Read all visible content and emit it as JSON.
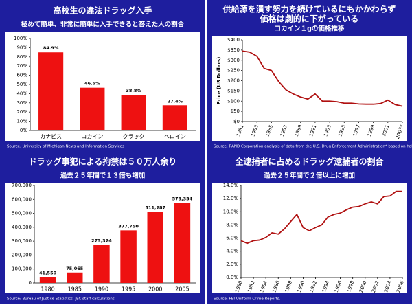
{
  "chart_data": [
    {
      "type": "bar",
      "title": [
        "高校生の違法ドラッグ入手"
      ],
      "subtitle": "極めて簡単、非常に簡単に入手できると答えた人の割合",
      "categories": [
        "カナビス",
        "コカイン",
        "クラック",
        "ヘロイン"
      ],
      "values": [
        84.9,
        46.5,
        38.8,
        27.4
      ],
      "value_labels": [
        "84.9%",
        "46.5%",
        "38.8%",
        "27.4%"
      ],
      "color": "#ee1111",
      "ylim": [
        0,
        100
      ],
      "yticks": [
        {
          "value": 0,
          "label": "0%"
        },
        {
          "value": 10,
          "label": "10%"
        },
        {
          "value": 20,
          "label": "20%"
        },
        {
          "value": 30,
          "label": "30%"
        },
        {
          "value": 40,
          "label": "40%"
        },
        {
          "value": 50,
          "label": "50%"
        },
        {
          "value": 60,
          "label": "60%"
        },
        {
          "value": 70,
          "label": "70%"
        },
        {
          "value": 80,
          "label": "80%"
        },
        {
          "value": 90,
          "label": "90%"
        },
        {
          "value": 100,
          "label": "100%"
        }
      ],
      "source": "Source: University of Michigan News and Information Services"
    },
    {
      "type": "line",
      "title": [
        "供給源を潰す努力を続けているにもかかわらず",
        "価格は劇的に下がっている"
      ],
      "subtitle": "コカイン１gの価格推移",
      "ylabel": "Price (US Dollars)",
      "x": [
        1981,
        1982,
        1983,
        1984,
        1985,
        1986,
        1987,
        1988,
        1989,
        1990,
        1991,
        1992,
        1993,
        1994,
        1995,
        1996,
        1997,
        1998,
        1999,
        2000,
        2001,
        2002,
        2003
      ],
      "values": [
        345,
        340,
        320,
        260,
        250,
        195,
        155,
        135,
        120,
        110,
        135,
        100,
        100,
        97,
        90,
        90,
        86,
        85,
        85,
        88,
        105,
        83,
        75
      ],
      "color": "#b01010",
      "xlim": [
        1981,
        2003
      ],
      "xticks": [
        1981,
        1983,
        1985,
        1987,
        1989,
        1991,
        1993,
        1995,
        1997,
        1999,
        2001,
        {
          "value": 2003,
          "label": "2003*"
        }
      ],
      "ylim": [
        0,
        400
      ],
      "yticks": [
        {
          "value": 0,
          "label": "$0"
        },
        {
          "value": 50,
          "label": "$50"
        },
        {
          "value": 100,
          "label": "$100"
        },
        {
          "value": 150,
          "label": "$150"
        },
        {
          "value": 200,
          "label": "$200"
        },
        {
          "value": 250,
          "label": "$250"
        },
        {
          "value": 300,
          "label": "$300"
        },
        {
          "value": 350,
          "label": "$350"
        },
        {
          "value": 400,
          "label": "$400"
        }
      ],
      "source": "Source: RAND Corporation analysis of data from the U.S. Drug Enforcement Administration* based on half a year of data"
    },
    {
      "type": "bar",
      "title": [
        "ドラッグ事犯による拘禁は５０万人余り"
      ],
      "subtitle": "過去２５年間で１３倍も増加",
      "categories": [
        "1980",
        "1985",
        "1990",
        "1995",
        "2000",
        "2005"
      ],
      "values": [
        41550,
        75065,
        273324,
        377750,
        511287,
        573354
      ],
      "value_labels": [
        "41,550",
        "75,065",
        "273,324",
        "377,750",
        "511,287",
        "573,354"
      ],
      "color": "#ee1111",
      "ylim": [
        0,
        700000
      ],
      "yticks": [
        0,
        {
          "value": 100000,
          "label": "100,000"
        },
        {
          "value": 200000,
          "label": "200,000"
        },
        {
          "value": 300000,
          "label": "300,000"
        },
        {
          "value": 400000,
          "label": "400,000"
        },
        {
          "value": 500000,
          "label": "500,000"
        },
        {
          "value": 600000,
          "label": "600,000"
        },
        {
          "value": 700000,
          "label": "700,000"
        }
      ],
      "source": "Source: Bureau of Justice Statistics, JEC staff calculations."
    },
    {
      "type": "line",
      "title": [
        "全逮捕者に占めるドラッグ逮捕者の割合"
      ],
      "subtitle": "過去２５年間で２倍以上に増加",
      "x": [
        1980,
        1981,
        1982,
        1983,
        1984,
        1985,
        1986,
        1987,
        1988,
        1989,
        1990,
        1991,
        1992,
        1993,
        1994,
        1995,
        1996,
        1997,
        1998,
        1999,
        2000,
        2001,
        2002,
        2003,
        2004,
        2005,
        2006
      ],
      "values": [
        5.6,
        5.2,
        5.6,
        5.7,
        6.1,
        6.8,
        6.6,
        7.4,
        8.5,
        9.6,
        7.6,
        7.1,
        7.6,
        8.0,
        9.2,
        9.6,
        9.8,
        10.3,
        10.7,
        10.8,
        11.2,
        11.5,
        11.2,
        12.3,
        12.4,
        13.1,
        13.1
      ],
      "color": "#b01010",
      "xlim": [
        1980,
        2006
      ],
      "xticks": [
        1980,
        1982,
        1984,
        1986,
        1988,
        1990,
        1992,
        1994,
        1996,
        1998,
        2000,
        2002,
        2004,
        2006
      ],
      "ylim": [
        0,
        14
      ],
      "yticks": [
        {
          "value": 0,
          "label": "0.0%"
        },
        {
          "value": 2,
          "label": "2.0%"
        },
        {
          "value": 4,
          "label": "4.0%"
        },
        {
          "value": 6,
          "label": "6.0%"
        },
        {
          "value": 8,
          "label": "8.0%"
        },
        {
          "value": 10,
          "label": "10.0%"
        },
        {
          "value": 12,
          "label": "12.0%"
        },
        {
          "value": 14,
          "label": "14.0%"
        }
      ],
      "source": "Source: FBI Uniform Crime Reports."
    }
  ]
}
